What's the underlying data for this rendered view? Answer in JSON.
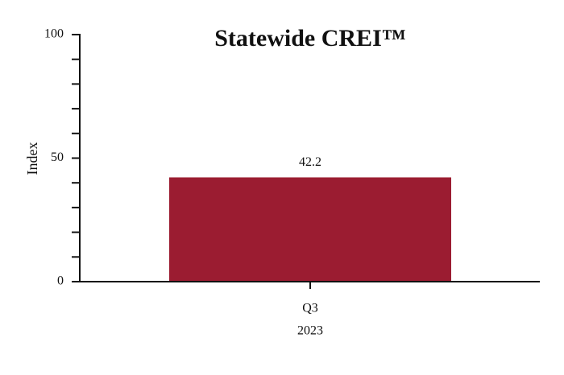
{
  "chart_data": {
    "type": "bar",
    "title": "Statewide CREI™",
    "y_label": "Index",
    "categories": [
      "Q3"
    ],
    "category_groups": [
      "2023"
    ],
    "values": [
      42.2
    ],
    "color": "#9b1c31",
    "ylim": [
      0,
      100
    ],
    "yticks": [
      0,
      50,
      100
    ],
    "yminorticks": [
      10,
      20,
      30,
      40,
      60,
      70,
      80,
      90
    ]
  }
}
